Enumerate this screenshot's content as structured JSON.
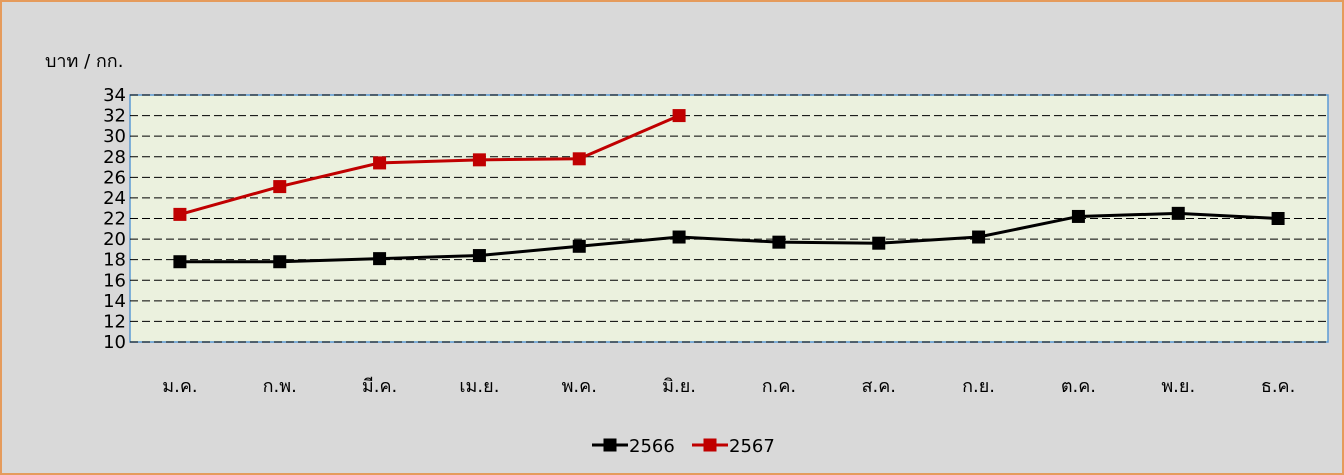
{
  "chart_data": {
    "type": "line",
    "y_label": "บาท / กก.",
    "categories": [
      "ม.ค.",
      "ก.พ.",
      "มี.ค.",
      "เม.ย.",
      "พ.ค.",
      "มิ.ย.",
      "ก.ค.",
      "ส.ค.",
      "ก.ย.",
      "ต.ค.",
      "พ.ย.",
      "ธ.ค."
    ],
    "series": [
      {
        "name": "2566",
        "color": "#000000",
        "values": [
          17.8,
          17.8,
          18.1,
          18.4,
          19.3,
          20.2,
          19.7,
          19.6,
          20.2,
          22.2,
          22.5,
          22.0
        ]
      },
      {
        "name": "2567",
        "color": "#c00000",
        "values": [
          22.4,
          25.1,
          27.4,
          27.7,
          27.8,
          32.0,
          null,
          null,
          null,
          null,
          null,
          null
        ]
      }
    ],
    "ylim": [
      10,
      34
    ],
    "yticks": [
      10,
      12,
      14,
      16,
      18,
      20,
      22,
      24,
      26,
      28,
      30,
      32,
      34
    ],
    "grid": true,
    "legend": "bottom"
  }
}
